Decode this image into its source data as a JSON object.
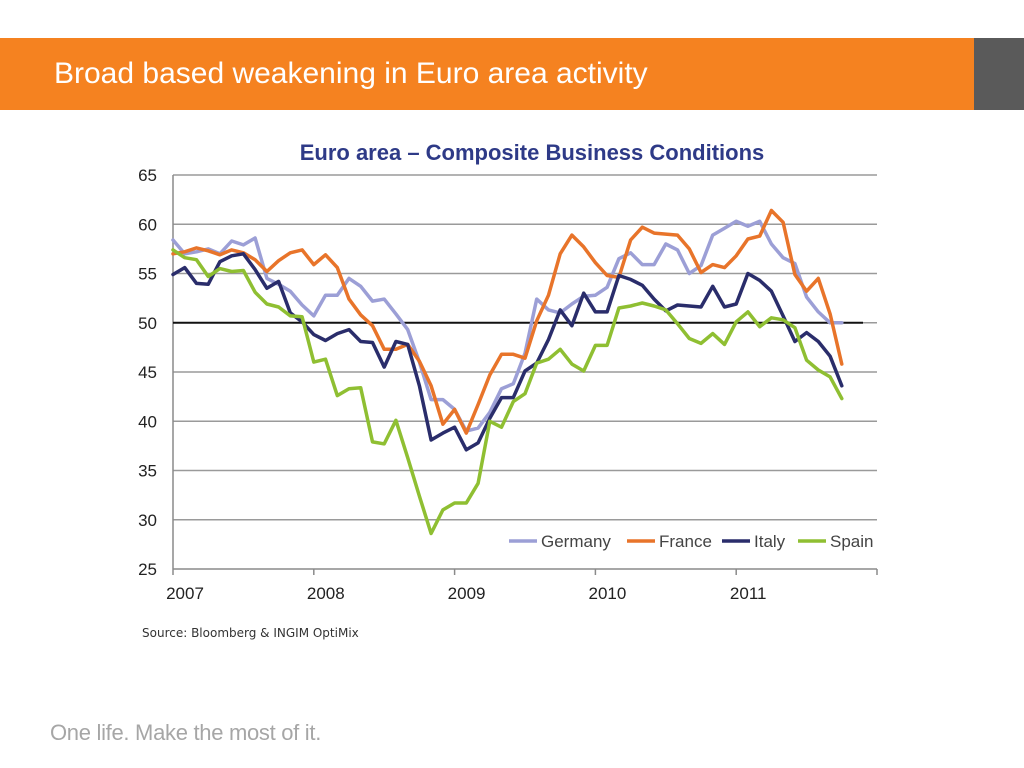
{
  "slide": {
    "title": "Broad based weakening in Euro area activity",
    "source": "Source: Bloomberg & INGIM OptiMix",
    "tagline": "One life. Make the most of it.",
    "colors": {
      "header": "#f58220",
      "accent": "#5a5a5a"
    }
  },
  "chart_data": {
    "type": "line",
    "title": "Euro area – Composite Business Conditions",
    "xlabel": "",
    "ylabel": "",
    "xlim": [
      2007.0,
      2012.0
    ],
    "ylim": [
      25,
      65
    ],
    "yticks": [
      65,
      60,
      55,
      50,
      45,
      40,
      35,
      30,
      25
    ],
    "xticks": [
      "2007",
      "2008",
      "2009",
      "2010",
      "2011"
    ],
    "reference_line": 50,
    "grid": true,
    "legend_position": "bottom-right",
    "x": [
      "2007-01",
      "2007-02",
      "2007-03",
      "2007-04",
      "2007-05",
      "2007-06",
      "2007-07",
      "2007-08",
      "2007-09",
      "2007-10",
      "2007-11",
      "2007-12",
      "2008-01",
      "2008-02",
      "2008-03",
      "2008-04",
      "2008-05",
      "2008-06",
      "2008-07",
      "2008-08",
      "2008-09",
      "2008-10",
      "2008-11",
      "2008-12",
      "2009-01",
      "2009-02",
      "2009-03",
      "2009-04",
      "2009-05",
      "2009-06",
      "2009-07",
      "2009-08",
      "2009-09",
      "2009-10",
      "2009-11",
      "2009-12",
      "2010-01",
      "2010-02",
      "2010-03",
      "2010-04",
      "2010-05",
      "2010-06",
      "2010-07",
      "2010-08",
      "2010-09",
      "2010-10",
      "2010-11",
      "2010-12",
      "2011-01",
      "2011-02",
      "2011-03",
      "2011-04",
      "2011-05",
      "2011-06",
      "2011-07",
      "2011-08",
      "2011-09",
      "2011-10"
    ],
    "series": [
      {
        "name": "Germany",
        "color": "#9c9fd6",
        "values": [
          58.4,
          57.0,
          57.2,
          57.5,
          57.0,
          58.3,
          57.9,
          58.6,
          54.5,
          53.9,
          53.2,
          51.8,
          50.7,
          52.8,
          52.8,
          54.5,
          53.7,
          52.2,
          52.4,
          50.9,
          49.3,
          46.0,
          42.2,
          42.2,
          41.2,
          39.0,
          39.3,
          40.9,
          43.3,
          43.8,
          46.9,
          52.4,
          51.3,
          51.0,
          51.9,
          52.7,
          52.8,
          53.6,
          56.5,
          57.1,
          55.9,
          55.9,
          58.0,
          57.4,
          55.0,
          55.8,
          58.9,
          59.6,
          60.3,
          59.8,
          60.3,
          58.0,
          56.6,
          56.0,
          52.6,
          51.1,
          50.0,
          50.0
        ]
      },
      {
        "name": "France",
        "color": "#e8742a",
        "values": [
          57.0,
          57.2,
          57.6,
          57.3,
          56.9,
          57.4,
          57.1,
          56.4,
          55.2,
          56.3,
          57.1,
          57.4,
          55.9,
          56.9,
          55.6,
          52.4,
          50.8,
          49.7,
          47.3,
          47.3,
          47.8,
          46.1,
          43.6,
          39.7,
          41.2,
          38.8,
          41.7,
          44.7,
          46.8,
          46.8,
          46.4,
          50.2,
          52.8,
          57.0,
          58.9,
          57.7,
          56.1,
          54.8,
          54.6,
          58.4,
          59.7,
          59.1,
          59.0,
          58.9,
          57.5,
          55.1,
          55.9,
          55.6,
          56.8,
          58.5,
          58.8,
          61.4,
          60.2,
          54.9,
          53.2,
          54.5,
          50.9,
          45.8
        ]
      },
      {
        "name": "Italy",
        "color": "#2a2d6b",
        "values": [
          54.9,
          55.6,
          54.0,
          53.9,
          56.2,
          56.8,
          57.0,
          55.4,
          53.5,
          54.2,
          51.0,
          50.1,
          48.8,
          48.2,
          48.9,
          49.3,
          48.1,
          48.0,
          45.5,
          48.1,
          47.8,
          43.6,
          38.1,
          38.8,
          39.4,
          37.1,
          37.8,
          40.3,
          42.4,
          42.4,
          45.1,
          45.9,
          48.3,
          51.3,
          49.7,
          53.0,
          51.1,
          51.1,
          54.8,
          54.4,
          53.8,
          52.4,
          51.2,
          51.8,
          51.7,
          51.6,
          53.7,
          51.6,
          51.9,
          55.0,
          54.3,
          53.2,
          50.7,
          48.1,
          49.0,
          48.1,
          46.6,
          43.6
        ]
      },
      {
        "name": "Spain",
        "color": "#8fbf32",
        "values": [
          57.4,
          56.6,
          56.4,
          54.7,
          55.5,
          55.2,
          55.3,
          53.1,
          51.9,
          51.6,
          50.7,
          50.6,
          46.0,
          46.3,
          42.6,
          43.3,
          43.4,
          37.9,
          37.7,
          40.1,
          36.3,
          32.4,
          28.6,
          31.0,
          31.7,
          31.7,
          33.7,
          40.0,
          39.4,
          42.0,
          42.8,
          45.9,
          46.3,
          47.3,
          45.8,
          45.1,
          47.7,
          47.7,
          51.5,
          51.7,
          52.0,
          51.7,
          51.3,
          49.9,
          48.4,
          47.9,
          48.9,
          47.8,
          50.1,
          51.1,
          49.6,
          50.5,
          50.3,
          49.5,
          46.2,
          45.2,
          44.5,
          42.3
        ]
      }
    ]
  }
}
